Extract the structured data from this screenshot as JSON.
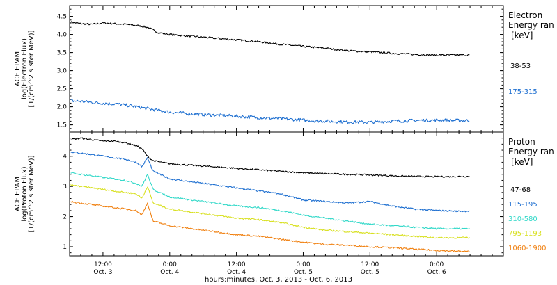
{
  "chart_data": {
    "type": "line",
    "xlabel": "hours:minutes, Oct.  3, 2013 - Oct.  6, 2013",
    "x_ticks": [
      {
        "hour": 12,
        "time": "12:00",
        "date": "Oct. 3"
      },
      {
        "hour": 24,
        "time": "0:00",
        "date": "Oct. 4"
      },
      {
        "hour": 36,
        "time": "12:00",
        "date": "Oct. 4"
      },
      {
        "hour": 48,
        "time": "0:00",
        "date": "Oct. 5"
      },
      {
        "hour": 60,
        "time": "12:00",
        "date": "Oct. 5"
      },
      {
        "hour": 72,
        "time": "0:00",
        "date": "Oct. 6"
      }
    ],
    "x_axis_start": "Oct. 3 06:00",
    "xlim_hours": [
      6,
      84
    ],
    "panels": [
      {
        "ylabel": "ACE EPAM",
        "ylabel2": "log(Electron Flux)",
        "ylabel3": "[1/(cm^2 s ster MeV)]",
        "ylim": [
          1.3,
          4.8
        ],
        "y_ticks": [
          "1.5",
          "2.0",
          "2.5",
          "3.0",
          "3.5",
          "4.0",
          "4.5"
        ],
        "legend_title1": "Electron",
        "legend_title2": "Energy ran",
        "legend_unit": "[keV]",
        "series": [
          {
            "name": "38-53",
            "color": "#000000",
            "x": [
              6,
              8,
              10,
              12,
              14,
              16,
              18,
              20,
              22,
              24,
              28,
              32,
              36,
              40,
              44,
              48,
              52,
              56,
              60,
              64,
              68,
              72,
              76
            ],
            "values": [
              4.35,
              4.3,
              4.28,
              4.32,
              4.3,
              4.28,
              4.25,
              4.2,
              4.05,
              4.0,
              3.95,
              3.9,
              3.85,
              3.8,
              3.73,
              3.67,
              3.62,
              3.55,
              3.52,
              3.48,
              3.45,
              3.43,
              3.43
            ]
          },
          {
            "name": "175-315",
            "color": "#1e6fd0",
            "x": [
              6,
              8,
              10,
              12,
              14,
              16,
              18,
              20,
              22,
              24,
              28,
              32,
              36,
              40,
              44,
              48,
              52,
              56,
              60,
              64,
              68,
              72,
              76
            ],
            "values": [
              2.17,
              2.15,
              2.12,
              2.1,
              2.08,
              2.05,
              2.0,
              1.95,
              1.9,
              1.85,
              1.8,
              1.77,
              1.74,
              1.7,
              1.67,
              1.63,
              1.6,
              1.58,
              1.57,
              1.6,
              1.62,
              1.63,
              1.62
            ]
          }
        ]
      },
      {
        "ylabel": "ACE EPAM",
        "ylabel2": "log(Proton Flux)",
        "ylabel3": "[1/(cm^2 s ster MeV)]",
        "ylim": [
          0.7,
          4.8
        ],
        "y_ticks": [
          "1",
          "2",
          "3",
          "4"
        ],
        "legend_title1": "Proton",
        "legend_title2": "Energy ran",
        "legend_unit": "[keV]",
        "series": [
          {
            "name": "47-68",
            "color": "#000000",
            "x": [
              6,
              8,
              10,
              12,
              14,
              16,
              18,
              19,
              20,
              21,
              24,
              28,
              32,
              36,
              40,
              44,
              48,
              52,
              56,
              60,
              64,
              68,
              72,
              76
            ],
            "values": [
              4.55,
              4.6,
              4.55,
              4.5,
              4.5,
              4.45,
              4.35,
              4.25,
              4.0,
              3.85,
              3.75,
              3.7,
              3.65,
              3.6,
              3.55,
              3.5,
              3.45,
              3.42,
              3.4,
              3.38,
              3.35,
              3.33,
              3.32,
              3.33
            ]
          },
          {
            "name": "115-195",
            "color": "#1e6fd0",
            "x": [
              6,
              8,
              10,
              12,
              14,
              16,
              18,
              19,
              20,
              21,
              24,
              28,
              32,
              36,
              40,
              44,
              48,
              52,
              56,
              60,
              64,
              68,
              72,
              76
            ],
            "values": [
              4.15,
              4.1,
              4.05,
              4.0,
              3.95,
              3.9,
              3.8,
              3.65,
              3.95,
              3.5,
              3.25,
              3.15,
              3.05,
              2.95,
              2.85,
              2.75,
              2.55,
              2.5,
              2.45,
              2.5,
              2.35,
              2.25,
              2.2,
              2.18
            ]
          },
          {
            "name": "310-580",
            "color": "#30d8c8",
            "x": [
              6,
              8,
              10,
              12,
              14,
              16,
              18,
              19,
              20,
              21,
              24,
              28,
              32,
              36,
              40,
              44,
              48,
              52,
              56,
              60,
              64,
              68,
              72,
              76
            ],
            "values": [
              3.45,
              3.4,
              3.35,
              3.3,
              3.25,
              3.2,
              3.1,
              3.0,
              3.4,
              2.9,
              2.65,
              2.55,
              2.45,
              2.35,
              2.3,
              2.2,
              2.05,
              1.95,
              1.85,
              1.75,
              1.7,
              1.65,
              1.6,
              1.6
            ]
          },
          {
            "name": "795-1193",
            "color": "#d8e020",
            "x": [
              6,
              8,
              10,
              12,
              14,
              16,
              18,
              19,
              20,
              21,
              24,
              28,
              32,
              36,
              40,
              44,
              48,
              52,
              56,
              60,
              64,
              68,
              72,
              76
            ],
            "values": [
              3.05,
              3.0,
              2.95,
              2.9,
              2.85,
              2.8,
              2.75,
              2.6,
              3.0,
              2.45,
              2.25,
              2.15,
              2.05,
              1.95,
              1.9,
              1.8,
              1.65,
              1.55,
              1.5,
              1.45,
              1.4,
              1.35,
              1.3,
              1.3
            ]
          },
          {
            "name": "1060-1900",
            "color": "#f08010",
            "x": [
              6,
              8,
              10,
              12,
              14,
              16,
              18,
              19,
              20,
              21,
              24,
              28,
              32,
              36,
              40,
              44,
              48,
              52,
              56,
              60,
              64,
              68,
              72,
              76
            ],
            "values": [
              2.5,
              2.45,
              2.4,
              2.35,
              2.3,
              2.25,
              2.2,
              2.05,
              2.45,
              1.85,
              1.7,
              1.6,
              1.5,
              1.4,
              1.35,
              1.25,
              1.15,
              1.08,
              1.05,
              1.0,
              0.97,
              0.92,
              0.88,
              0.85
            ]
          }
        ]
      }
    ]
  }
}
